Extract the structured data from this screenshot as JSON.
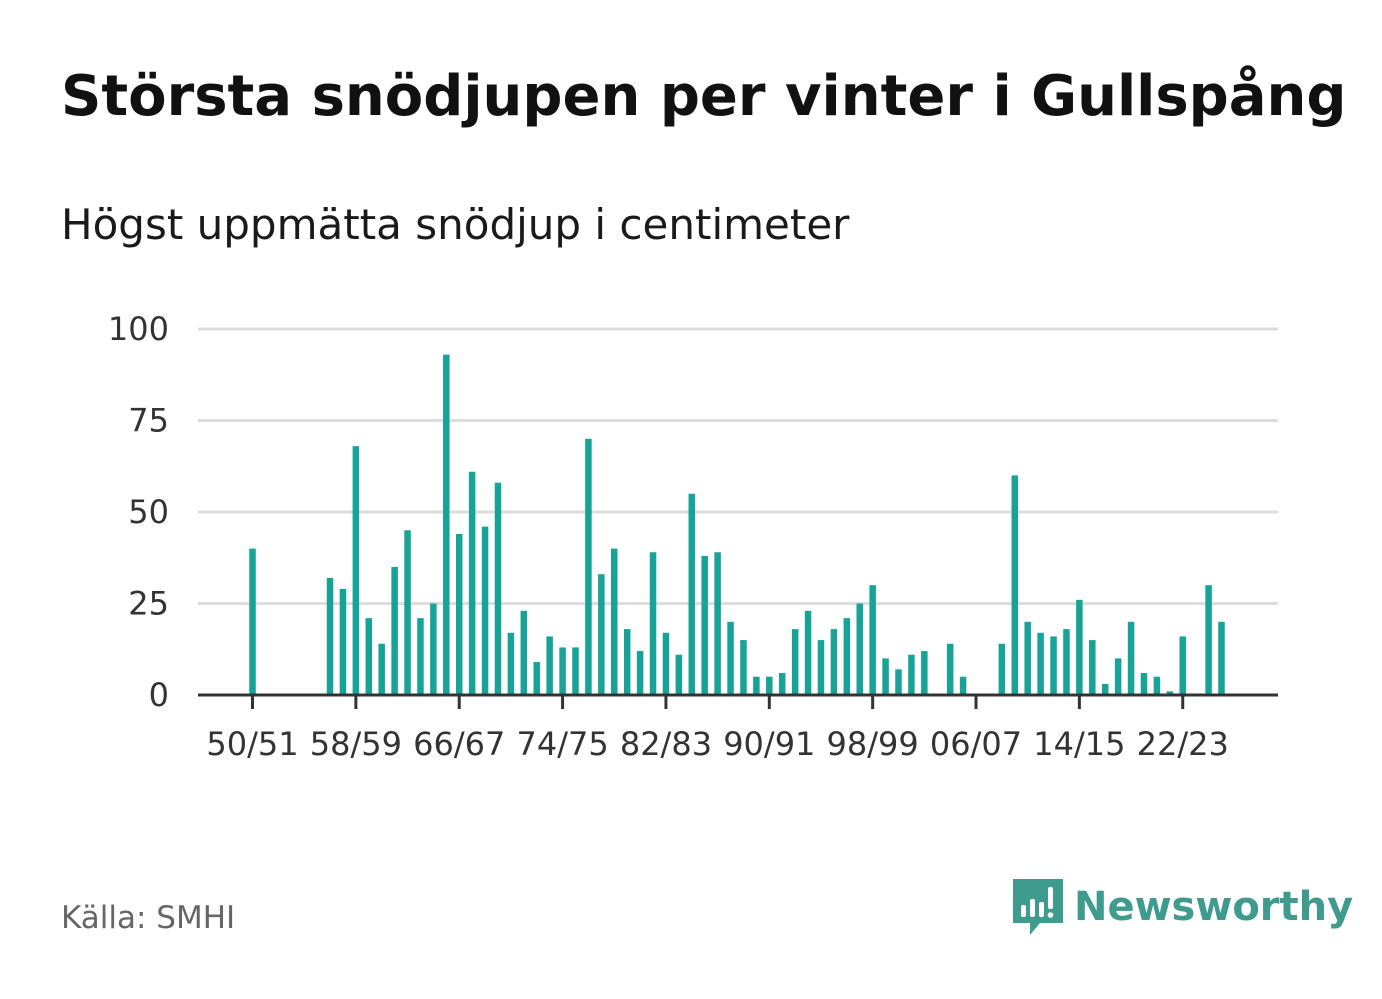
{
  "header": {
    "title": "Största snödjupen per vinter i Gullspång",
    "subtitle": "Högst uppmätta snödjup i centimeter"
  },
  "footer": {
    "source": "Källa: SMHI",
    "brand": "Newsworthy",
    "brand_icon": "bar-chart-speech-bubble-icon"
  },
  "colors": {
    "bar": "#17a398",
    "grid": "#dddddd",
    "axis": "#333333",
    "brand": "#3f9b8e"
  },
  "chart_data": {
    "type": "bar",
    "title": "Största snödjupen per vinter i Gullspång",
    "subtitle": "Högst uppmätta snödjup i centimeter",
    "xlabel": "",
    "ylabel": "",
    "ylim": [
      0,
      100
    ],
    "yticks": [
      0,
      25,
      50,
      75,
      100
    ],
    "grid": true,
    "legend": "none",
    "xtick_labels": [
      "50/51",
      "58/59",
      "66/67",
      "74/75",
      "82/83",
      "90/91",
      "98/99",
      "06/07",
      "14/15",
      "22/23"
    ],
    "categories": [
      "50/51",
      "51/52",
      "52/53",
      "53/54",
      "54/55",
      "55/56",
      "56/57",
      "57/58",
      "58/59",
      "59/60",
      "60/61",
      "61/62",
      "62/63",
      "63/64",
      "64/65",
      "65/66",
      "66/67",
      "67/68",
      "68/69",
      "69/70",
      "70/71",
      "71/72",
      "72/73",
      "73/74",
      "74/75",
      "75/76",
      "76/77",
      "77/78",
      "78/79",
      "79/80",
      "80/81",
      "81/82",
      "82/83",
      "83/84",
      "84/85",
      "85/86",
      "86/87",
      "87/88",
      "88/89",
      "89/90",
      "90/91",
      "91/92",
      "92/93",
      "93/94",
      "94/95",
      "95/96",
      "96/97",
      "97/98",
      "98/99",
      "99/00",
      "00/01",
      "01/02",
      "02/03",
      "03/04",
      "04/05",
      "05/06",
      "06/07",
      "07/08",
      "08/09",
      "09/10",
      "10/11",
      "11/12",
      "12/13",
      "13/14",
      "14/15",
      "15/16",
      "16/17",
      "17/18",
      "18/19",
      "19/20",
      "20/21",
      "21/22",
      "22/23",
      "23/24",
      "24/25",
      "25/26"
    ],
    "values": [
      40,
      null,
      null,
      null,
      null,
      null,
      32,
      29,
      68,
      21,
      14,
      35,
      45,
      21,
      25,
      93,
      44,
      61,
      46,
      58,
      17,
      23,
      9,
      16,
      13,
      13,
      70,
      33,
      40,
      18,
      12,
      39,
      17,
      11,
      55,
      38,
      39,
      20,
      15,
      5,
      5,
      6,
      18,
      23,
      15,
      18,
      21,
      25,
      30,
      10,
      7,
      11,
      12,
      null,
      14,
      5,
      null,
      null,
      14,
      60,
      20,
      17,
      16,
      18,
      26,
      15,
      3,
      10,
      20,
      6,
      5,
      1,
      16,
      null,
      30,
      20
    ]
  }
}
